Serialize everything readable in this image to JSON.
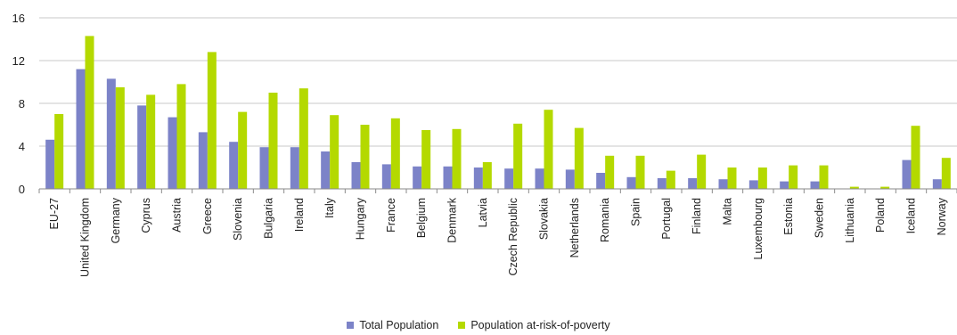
{
  "chart_data": {
    "type": "bar",
    "title": "",
    "xlabel": "",
    "ylabel": "",
    "ylim": [
      0,
      16
    ],
    "yticks": [
      0,
      4,
      8,
      12,
      16
    ],
    "grid": true,
    "legend_position": "bottom-center",
    "categories": [
      "EU-27",
      "United Kingdom",
      "Germany",
      "Cyprus",
      "Austria",
      "Greece",
      "Slovenia",
      "Bulgaria",
      "Ireland",
      "Italy",
      "Hungary",
      "France",
      "Belgium",
      "Denmark",
      "Latvia",
      "Czech Republic",
      "Slovakia",
      "Netherlands",
      "Romania",
      "Spain",
      "Portugal",
      "Finland",
      "Malta",
      "Luxembourg",
      "Estonia",
      "Sweden",
      "Lithuania",
      "Poland",
      "Iceland",
      "Norway"
    ],
    "series": [
      {
        "name": "Total Population",
        "color": "#7c83c8",
        "values": [
          4.6,
          11.2,
          10.3,
          7.8,
          6.7,
          5.3,
          4.4,
          3.9,
          3.9,
          3.5,
          2.5,
          2.3,
          2.1,
          2.1,
          2.0,
          1.9,
          1.9,
          1.8,
          1.5,
          1.1,
          1.0,
          1.0,
          0.9,
          0.8,
          0.7,
          0.7,
          0.0,
          0.0,
          2.7,
          0.9
        ]
      },
      {
        "name": "Population at-risk-of-poverty",
        "color": "#b4d900",
        "values": [
          7.0,
          14.3,
          9.5,
          8.8,
          9.8,
          12.8,
          7.2,
          9.0,
          9.4,
          6.9,
          6.0,
          6.6,
          5.5,
          5.6,
          2.5,
          6.1,
          7.4,
          5.7,
          3.1,
          3.1,
          1.7,
          3.2,
          2.0,
          2.0,
          2.2,
          2.2,
          0.2,
          0.2,
          5.9,
          2.9
        ]
      }
    ]
  },
  "colors": {
    "grid": "#c8c8c8",
    "axis": "#8a8a8a",
    "text": "#222222"
  }
}
